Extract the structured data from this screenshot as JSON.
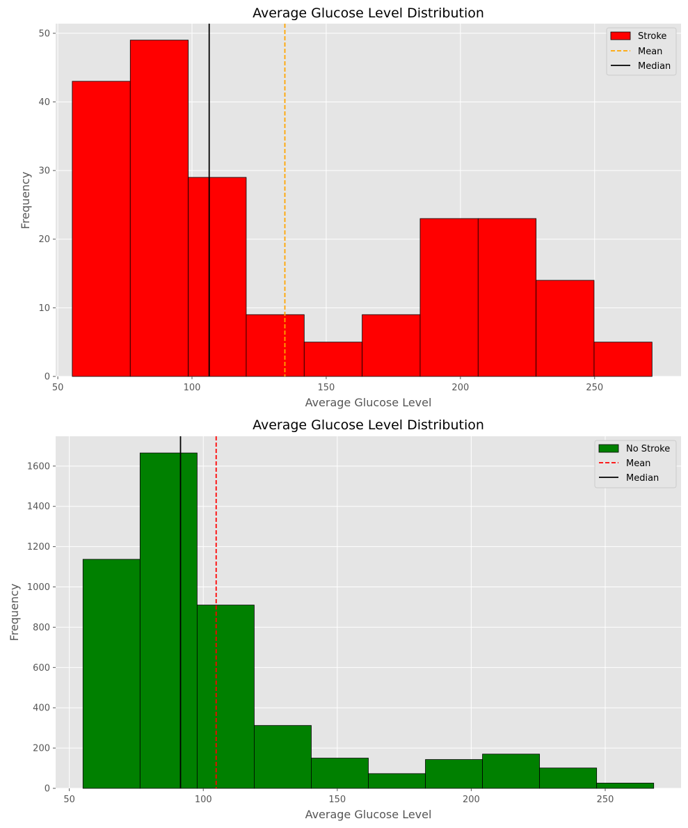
{
  "chart_data": [
    {
      "type": "bar",
      "title": "Average Glucose Level Distribution",
      "xlabel": "Average Glucose Level",
      "ylabel": "Frequency",
      "bin_edges": [
        55.4,
        77.0,
        98.6,
        120.2,
        141.8,
        163.4,
        185.0,
        206.6,
        228.2,
        249.8,
        271.4
      ],
      "values": [
        43,
        49,
        29,
        9,
        5,
        9,
        23,
        23,
        14,
        5
      ],
      "series": [
        {
          "name": "Stroke",
          "color": "#ff0000"
        }
      ],
      "mean": {
        "name": "Mean",
        "value": 134.6,
        "color": "#ffa500",
        "style": "dashed"
      },
      "median": {
        "name": "Median",
        "value": 106.4,
        "color": "#000000",
        "style": "solid"
      },
      "xlim": [
        49.2,
        282.2
      ],
      "ylim": [
        0,
        51.4
      ],
      "xticks": [
        50,
        100,
        150,
        200,
        250
      ],
      "yticks": [
        0,
        10,
        20,
        30,
        40,
        50
      ],
      "grid": true,
      "legend": "top-right"
    },
    {
      "type": "bar",
      "title": "Average Glucose Level Distribution",
      "xlabel": "Average Glucose Level",
      "ylabel": "Frequency",
      "bin_edges": [
        55.1,
        76.4,
        97.7,
        119.0,
        140.3,
        161.6,
        182.9,
        204.2,
        225.5,
        246.8,
        268.1
      ],
      "values": [
        1137,
        1665,
        910,
        312,
        150,
        73,
        143,
        170,
        101,
        26
      ],
      "series": [
        {
          "name": "No Stroke",
          "color": "#008000"
        }
      ],
      "mean": {
        "name": "Mean",
        "value": 104.8,
        "color": "#ff0000",
        "style": "dashed"
      },
      "median": {
        "name": "Median",
        "value": 91.5,
        "color": "#000000",
        "style": "solid"
      },
      "xlim": [
        44.9,
        278.3
      ],
      "ylim": [
        0,
        1748
      ],
      "xticks": [
        50,
        100,
        150,
        200,
        250
      ],
      "yticks": [
        0,
        200,
        400,
        600,
        800,
        1000,
        1200,
        1400,
        1600
      ],
      "grid": true,
      "legend": "top-right"
    }
  ]
}
